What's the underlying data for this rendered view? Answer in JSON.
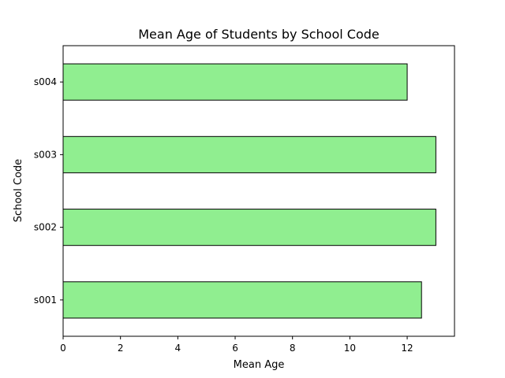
{
  "chart_data": {
    "type": "bar",
    "orientation": "horizontal",
    "title": "Mean Age of Students by School Code",
    "xlabel": "Mean Age",
    "ylabel": "School Code",
    "categories": [
      "s001",
      "s002",
      "s003",
      "s004"
    ],
    "values": [
      12.5,
      13.0,
      13.0,
      12.0
    ],
    "xlim": [
      0,
      13.65
    ],
    "xticks": [
      0,
      2,
      4,
      6,
      8,
      10,
      12
    ],
    "grid": false,
    "bar_color": "#90ee90",
    "bar_edge_color": "#000000"
  }
}
